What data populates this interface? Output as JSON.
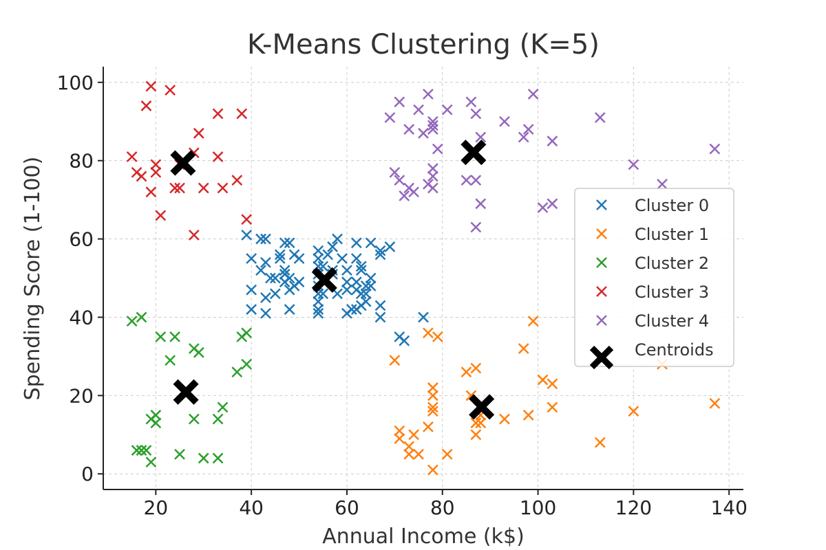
{
  "chart_data": {
    "type": "scatter",
    "title": "K-Means Clustering (K=5)",
    "xlabel": "Annual Income (k$)",
    "ylabel": "Spending Score (1-100)",
    "xlim": [
      9,
      143
    ],
    "ylim": [
      -4,
      104
    ],
    "xticks": [
      20,
      40,
      60,
      80,
      100,
      120,
      140
    ],
    "yticks": [
      0,
      20,
      40,
      60,
      80,
      100
    ],
    "grid": true,
    "legend_position": "center-right",
    "marker": "x",
    "series": [
      {
        "name": "Cluster 0",
        "color": "#1f77b4",
        "points": [
          [
            39,
            61
          ],
          [
            40,
            55
          ],
          [
            40,
            47
          ],
          [
            40,
            42
          ],
          [
            42,
            60
          ],
          [
            43,
            60
          ],
          [
            42,
            52
          ],
          [
            43,
            54
          ],
          [
            43,
            45
          ],
          [
            43,
            41
          ],
          [
            44,
            50
          ],
          [
            45,
            50
          ],
          [
            45,
            46
          ],
          [
            46,
            56
          ],
          [
            46,
            55
          ],
          [
            47,
            59
          ],
          [
            47,
            52
          ],
          [
            47,
            51
          ],
          [
            47,
            49
          ],
          [
            48,
            59
          ],
          [
            48,
            47
          ],
          [
            48,
            50
          ],
          [
            48,
            42
          ],
          [
            49,
            48
          ],
          [
            49,
            56
          ],
          [
            50,
            55
          ],
          [
            50,
            49
          ],
          [
            54,
            57
          ],
          [
            54,
            55
          ],
          [
            54,
            53
          ],
          [
            54,
            51
          ],
          [
            54,
            48
          ],
          [
            54,
            46
          ],
          [
            54,
            44
          ],
          [
            54,
            42
          ],
          [
            54,
            41
          ],
          [
            55,
            53
          ],
          [
            55,
            46
          ],
          [
            56,
            56
          ],
          [
            57,
            58
          ],
          [
            57,
            52
          ],
          [
            57,
            51
          ],
          [
            58,
            60
          ],
          [
            58,
            46
          ],
          [
            59,
            55
          ],
          [
            60,
            41
          ],
          [
            60,
            49
          ],
          [
            60,
            52
          ],
          [
            60,
            47
          ],
          [
            61,
            42
          ],
          [
            62,
            59
          ],
          [
            62,
            55
          ],
          [
            62,
            49
          ],
          [
            62,
            42
          ],
          [
            62,
            47
          ],
          [
            63,
            52
          ],
          [
            63,
            53
          ],
          [
            63,
            46
          ],
          [
            63,
            43
          ],
          [
            64,
            46
          ],
          [
            64,
            48
          ],
          [
            64,
            44
          ],
          [
            65,
            59
          ],
          [
            65,
            50
          ],
          [
            65,
            48
          ],
          [
            67,
            43
          ],
          [
            67,
            56
          ],
          [
            67,
            57
          ],
          [
            67,
            40
          ],
          [
            69,
            58
          ],
          [
            71,
            35
          ],
          [
            72,
            34
          ],
          [
            76,
            40
          ]
        ]
      },
      {
        "name": "Cluster 1",
        "color": "#ff7f0e",
        "points": [
          [
            70,
            29
          ],
          [
            71,
            11
          ],
          [
            71,
            9
          ],
          [
            73,
            5
          ],
          [
            73,
            7
          ],
          [
            74,
            10
          ],
          [
            75,
            5
          ],
          [
            77,
            12
          ],
          [
            77,
            36
          ],
          [
            78,
            22
          ],
          [
            78,
            17
          ],
          [
            78,
            20
          ],
          [
            78,
            16
          ],
          [
            78,
            1
          ],
          [
            79,
            35
          ],
          [
            81,
            5
          ],
          [
            85,
            26
          ],
          [
            86,
            20
          ],
          [
            87,
            27
          ],
          [
            87,
            13
          ],
          [
            87,
            10
          ],
          [
            88,
            13
          ],
          [
            88,
            15
          ],
          [
            93,
            14
          ],
          [
            97,
            32
          ],
          [
            98,
            15
          ],
          [
            99,
            39
          ],
          [
            101,
            24
          ],
          [
            103,
            17
          ],
          [
            103,
            23
          ],
          [
            113,
            8
          ],
          [
            120,
            16
          ],
          [
            126,
            28
          ],
          [
            137,
            18
          ]
        ]
      },
      {
        "name": "Cluster 2",
        "color": "#2ca02c",
        "points": [
          [
            15,
            39
          ],
          [
            16,
            6
          ],
          [
            17,
            40
          ],
          [
            17,
            6
          ],
          [
            18,
            6
          ],
          [
            19,
            3
          ],
          [
            19,
            14
          ],
          [
            20,
            15
          ],
          [
            20,
            13
          ],
          [
            21,
            35
          ],
          [
            23,
            29
          ],
          [
            24,
            35
          ],
          [
            25,
            5
          ],
          [
            28,
            14
          ],
          [
            28,
            32
          ],
          [
            29,
            31
          ],
          [
            30,
            4
          ],
          [
            33,
            4
          ],
          [
            33,
            14
          ],
          [
            34,
            17
          ],
          [
            37,
            26
          ],
          [
            38,
            35
          ],
          [
            39,
            36
          ],
          [
            39,
            28
          ]
        ]
      },
      {
        "name": "Cluster 3",
        "color": "#d62728",
        "points": [
          [
            15,
            81
          ],
          [
            16,
            77
          ],
          [
            17,
            76
          ],
          [
            18,
            94
          ],
          [
            19,
            72
          ],
          [
            19,
            99
          ],
          [
            20,
            77
          ],
          [
            20,
            79
          ],
          [
            21,
            66
          ],
          [
            23,
            98
          ],
          [
            24,
            73
          ],
          [
            25,
            73
          ],
          [
            25,
            79
          ],
          [
            28,
            82
          ],
          [
            28,
            61
          ],
          [
            29,
            87
          ],
          [
            30,
            73
          ],
          [
            33,
            92
          ],
          [
            33,
            81
          ],
          [
            34,
            73
          ],
          [
            37,
            75
          ],
          [
            38,
            92
          ],
          [
            39,
            65
          ]
        ]
      },
      {
        "name": "Cluster 4",
        "color": "#9467bd",
        "points": [
          [
            69,
            91
          ],
          [
            70,
            77
          ],
          [
            71,
            75
          ],
          [
            71,
            95
          ],
          [
            72,
            71
          ],
          [
            73,
            88
          ],
          [
            73,
            73
          ],
          [
            74,
            72
          ],
          [
            75,
            93
          ],
          [
            76,
            87
          ],
          [
            77,
            97
          ],
          [
            77,
            74
          ],
          [
            78,
            90
          ],
          [
            78,
            88
          ],
          [
            78,
            89
          ],
          [
            78,
            78
          ],
          [
            78,
            76
          ],
          [
            78,
            73
          ],
          [
            79,
            83
          ],
          [
            81,
            93
          ],
          [
            85,
            75
          ],
          [
            86,
            95
          ],
          [
            87,
            92
          ],
          [
            87,
            75
          ],
          [
            87,
            63
          ],
          [
            88,
            86
          ],
          [
            88,
            69
          ],
          [
            93,
            90
          ],
          [
            97,
            86
          ],
          [
            98,
            88
          ],
          [
            99,
            97
          ],
          [
            101,
            68
          ],
          [
            103,
            85
          ],
          [
            103,
            69
          ],
          [
            113,
            91
          ],
          [
            120,
            79
          ],
          [
            126,
            74
          ],
          [
            137,
            83
          ]
        ]
      }
    ],
    "centroids": {
      "name": "Centroids",
      "color": "#000000",
      "points": [
        [
          55.3,
          49.5
        ],
        [
          88.2,
          17.1
        ],
        [
          26.3,
          20.9
        ],
        [
          25.7,
          79.4
        ],
        [
          86.5,
          82.1
        ]
      ]
    }
  }
}
